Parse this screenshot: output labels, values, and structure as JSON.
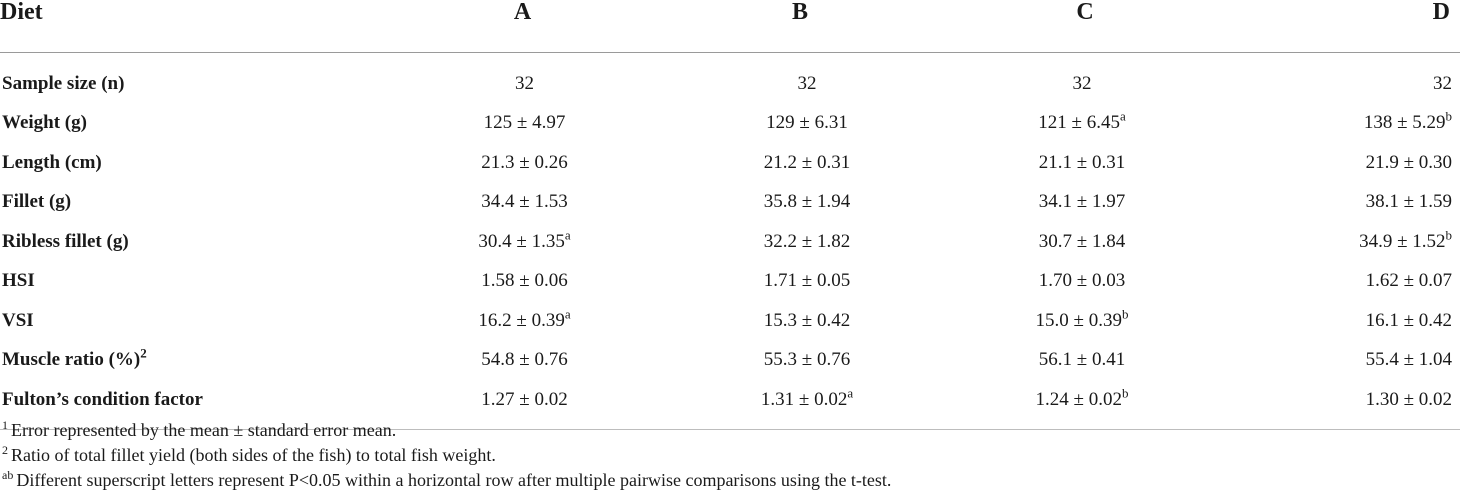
{
  "table": {
    "headers": [
      "Diet",
      "A",
      "B",
      "C",
      "D"
    ],
    "rows": [
      {
        "label": "Sample size (n)",
        "label_sup": "",
        "cells": [
          {
            "value": "32",
            "sup": ""
          },
          {
            "value": "32",
            "sup": ""
          },
          {
            "value": "32",
            "sup": ""
          },
          {
            "value": "32",
            "sup": ""
          }
        ]
      },
      {
        "label": "Weight (g)",
        "label_sup": "",
        "cells": [
          {
            "value": "125 ± 4.97",
            "sup": ""
          },
          {
            "value": "129 ± 6.31",
            "sup": ""
          },
          {
            "value": "121 ± 6.45",
            "sup": "a"
          },
          {
            "value": "138 ± 5.29",
            "sup": "b"
          }
        ]
      },
      {
        "label": "Length (cm)",
        "label_sup": "",
        "cells": [
          {
            "value": "21.3 ± 0.26",
            "sup": ""
          },
          {
            "value": "21.2 ± 0.31",
            "sup": ""
          },
          {
            "value": "21.1 ± 0.31",
            "sup": ""
          },
          {
            "value": "21.9 ± 0.30",
            "sup": ""
          }
        ]
      },
      {
        "label": "Fillet (g)",
        "label_sup": "",
        "cells": [
          {
            "value": "34.4 ± 1.53",
            "sup": ""
          },
          {
            "value": "35.8 ± 1.94",
            "sup": ""
          },
          {
            "value": "34.1 ± 1.97",
            "sup": ""
          },
          {
            "value": "38.1 ± 1.59",
            "sup": ""
          }
        ]
      },
      {
        "label": "Ribless fillet (g)",
        "label_sup": "",
        "cells": [
          {
            "value": "30.4 ± 1.35",
            "sup": "a"
          },
          {
            "value": "32.2 ± 1.82",
            "sup": ""
          },
          {
            "value": "30.7 ± 1.84",
            "sup": ""
          },
          {
            "value": "34.9 ± 1.52",
            "sup": "b"
          }
        ]
      },
      {
        "label": "HSI",
        "label_sup": "",
        "cells": [
          {
            "value": "1.58 ± 0.06",
            "sup": ""
          },
          {
            "value": "1.71 ± 0.05",
            "sup": ""
          },
          {
            "value": "1.70 ± 0.03",
            "sup": ""
          },
          {
            "value": "1.62 ± 0.07",
            "sup": ""
          }
        ]
      },
      {
        "label": "VSI",
        "label_sup": "",
        "cells": [
          {
            "value": "16.2 ± 0.39",
            "sup": "a"
          },
          {
            "value": "15.3 ± 0.42",
            "sup": ""
          },
          {
            "value": "15.0 ± 0.39",
            "sup": "b"
          },
          {
            "value": "16.1 ± 0.42",
            "sup": ""
          }
        ]
      },
      {
        "label": "Muscle ratio (%)",
        "label_sup": "2",
        "cells": [
          {
            "value": "54.8 ± 0.76",
            "sup": ""
          },
          {
            "value": "55.3 ± 0.76",
            "sup": ""
          },
          {
            "value": "56.1 ± 0.41",
            "sup": ""
          },
          {
            "value": "55.4 ± 1.04",
            "sup": ""
          }
        ]
      },
      {
        "label": "Fulton’s condition factor",
        "label_sup": "",
        "cells": [
          {
            "value": "1.27 ± 0.02",
            "sup": ""
          },
          {
            "value": "1.31 ± 0.02",
            "sup": "a"
          },
          {
            "value": "1.24 ± 0.02",
            "sup": "b"
          },
          {
            "value": "1.30 ± 0.02",
            "sup": ""
          }
        ]
      }
    ]
  },
  "footnotes": [
    {
      "marker": "1",
      "text": "Error represented by the mean ± standard error mean."
    },
    {
      "marker": "2",
      "text": "Ratio of total fillet yield (both sides of the fish) to total fish weight."
    },
    {
      "marker": "ab",
      "text": "Different superscript letters represent P<0.05 within a horizontal row after multiple pairwise comparisons using the t-test."
    }
  ]
}
